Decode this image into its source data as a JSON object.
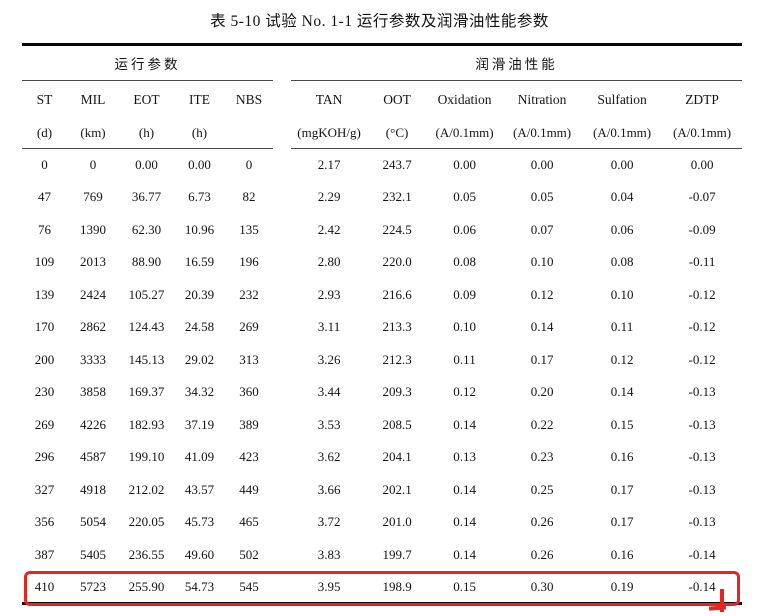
{
  "title": "表 5-10 试验 No. 1-1 运行参数及润滑油性能参数",
  "table": {
    "groups": [
      {
        "label": "运行参数",
        "span": 5
      },
      {
        "label": "润滑油性能",
        "span": 6
      }
    ],
    "columns": [
      {
        "name": "ST",
        "unit": "(d)"
      },
      {
        "name": "MIL",
        "unit": "(km)"
      },
      {
        "name": "EOT",
        "unit": "(h)"
      },
      {
        "name": "ITE",
        "unit": "(h)"
      },
      {
        "name": "NBS",
        "unit": ""
      },
      {
        "name": "TAN",
        "unit": "(mgKOH/g)"
      },
      {
        "name": "OOT",
        "unit": "(°C)"
      },
      {
        "name": "Oxidation",
        "unit": "(A/0.1mm)"
      },
      {
        "name": "Nitration",
        "unit": "(A/0.1mm)"
      },
      {
        "name": "Sulfation",
        "unit": "(A/0.1mm)"
      },
      {
        "name": "ZDTP",
        "unit": "(A/0.1mm)"
      }
    ],
    "rows": [
      [
        "0",
        "0",
        "0.00",
        "0.00",
        "0",
        "2.17",
        "243.7",
        "0.00",
        "0.00",
        "0.00",
        "0.00"
      ],
      [
        "47",
        "769",
        "36.77",
        "6.73",
        "82",
        "2.29",
        "232.1",
        "0.05",
        "0.05",
        "0.04",
        "-0.07"
      ],
      [
        "76",
        "1390",
        "62.30",
        "10.96",
        "135",
        "2.42",
        "224.5",
        "0.06",
        "0.07",
        "0.06",
        "-0.09"
      ],
      [
        "109",
        "2013",
        "88.90",
        "16.59",
        "196",
        "2.80",
        "220.0",
        "0.08",
        "0.10",
        "0.08",
        "-0.11"
      ],
      [
        "139",
        "2424",
        "105.27",
        "20.39",
        "232",
        "2.93",
        "216.6",
        "0.09",
        "0.12",
        "0.10",
        "-0.12"
      ],
      [
        "170",
        "2862",
        "124.43",
        "24.58",
        "269",
        "3.11",
        "213.3",
        "0.10",
        "0.14",
        "0.11",
        "-0.12"
      ],
      [
        "200",
        "3333",
        "145.13",
        "29.02",
        "313",
        "3.26",
        "212.3",
        "0.11",
        "0.17",
        "0.12",
        "-0.12"
      ],
      [
        "230",
        "3858",
        "169.37",
        "34.32",
        "360",
        "3.44",
        "209.3",
        "0.12",
        "0.20",
        "0.14",
        "-0.13"
      ],
      [
        "269",
        "4226",
        "182.93",
        "37.19",
        "389",
        "3.53",
        "208.5",
        "0.14",
        "0.22",
        "0.15",
        "-0.13"
      ],
      [
        "296",
        "4587",
        "199.10",
        "41.09",
        "423",
        "3.62",
        "204.1",
        "0.13",
        "0.23",
        "0.16",
        "-0.13"
      ],
      [
        "327",
        "4918",
        "212.02",
        "43.57",
        "449",
        "3.66",
        "202.1",
        "0.14",
        "0.25",
        "0.17",
        "-0.13"
      ],
      [
        "356",
        "5054",
        "220.05",
        "45.73",
        "465",
        "3.72",
        "201.0",
        "0.14",
        "0.26",
        "0.17",
        "-0.13"
      ],
      [
        "387",
        "5405",
        "236.55",
        "49.60",
        "502",
        "3.83",
        "199.7",
        "0.14",
        "0.26",
        "0.16",
        "-0.14"
      ],
      [
        "410",
        "5723",
        "255.90",
        "54.73",
        "545",
        "3.95",
        "198.9",
        "0.15",
        "0.30",
        "0.19",
        "-0.14"
      ]
    ],
    "highlighted_row_index": 13
  },
  "annotation": {
    "highlight_color": "#e8251d",
    "shape": "red-rectangle-around-last-row"
  }
}
